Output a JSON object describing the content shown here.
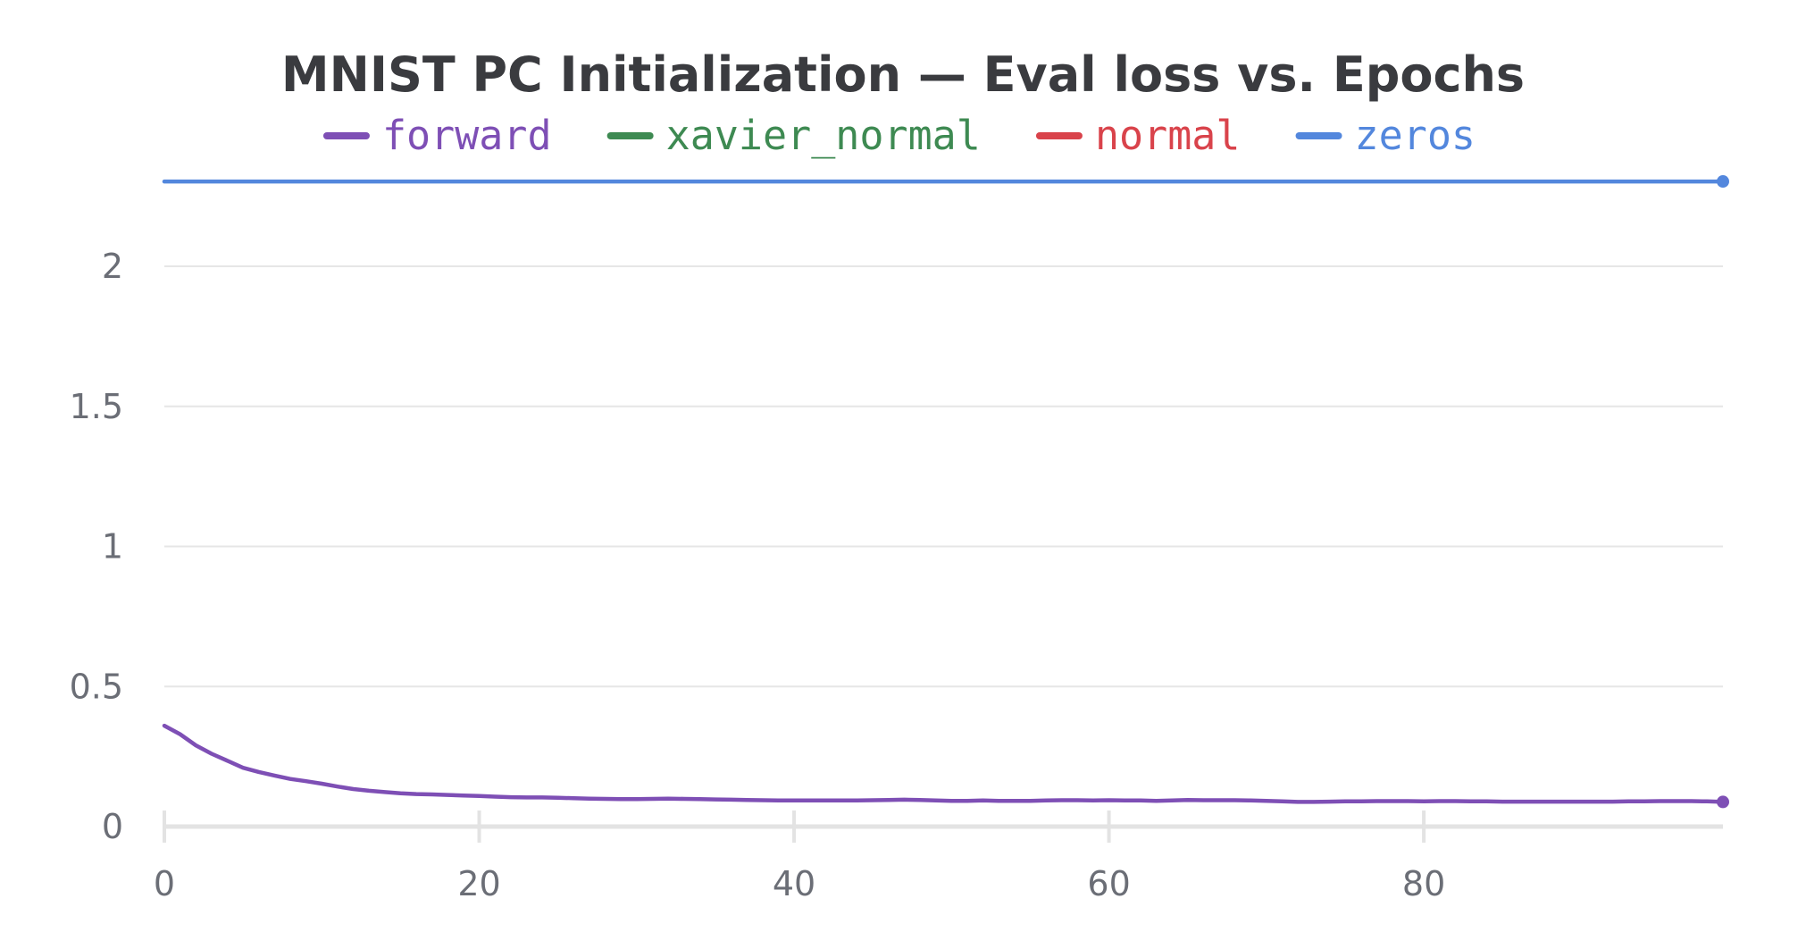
{
  "chart_data": {
    "type": "line",
    "title": "MNIST PC Initialization — Eval loss vs. Epochs",
    "xlabel": "",
    "ylabel": "",
    "xlim": [
      0,
      99
    ],
    "ylim": [
      0,
      2.3
    ],
    "x_ticks": [
      {
        "value": 0,
        "label": "0"
      },
      {
        "value": 20,
        "label": "20"
      },
      {
        "value": 40,
        "label": "40"
      },
      {
        "value": 60,
        "label": "60"
      },
      {
        "value": 80,
        "label": "80"
      }
    ],
    "y_ticks": [
      {
        "value": 0,
        "label": "0"
      },
      {
        "value": 0.5,
        "label": "0.5"
      },
      {
        "value": 1,
        "label": "1"
      },
      {
        "value": 1.5,
        "label": "1.5"
      },
      {
        "value": 2,
        "label": "2"
      }
    ],
    "grid": true,
    "legend_position": "top",
    "series": [
      {
        "name": "forward",
        "color": "#7e4fb5",
        "x": [
          0,
          1,
          2,
          3,
          4,
          5,
          6,
          7,
          8,
          9,
          10,
          11,
          12,
          13,
          14,
          15,
          16,
          17,
          18,
          19,
          20,
          21,
          22,
          23,
          24,
          25,
          26,
          27,
          28,
          29,
          30,
          31,
          32,
          33,
          34,
          35,
          36,
          37,
          38,
          39,
          40,
          41,
          42,
          43,
          44,
          45,
          46,
          47,
          48,
          49,
          50,
          51,
          52,
          53,
          54,
          55,
          56,
          57,
          58,
          59,
          60,
          61,
          62,
          63,
          64,
          65,
          66,
          67,
          68,
          69,
          70,
          71,
          72,
          73,
          74,
          75,
          76,
          77,
          78,
          79,
          80,
          81,
          82,
          83,
          84,
          85,
          86,
          87,
          88,
          89,
          90,
          91,
          92,
          93,
          94,
          95,
          96,
          97,
          98,
          99
        ],
        "y": [
          0.36,
          0.33,
          0.29,
          0.26,
          0.235,
          0.21,
          0.195,
          0.182,
          0.17,
          0.162,
          0.153,
          0.143,
          0.134,
          0.128,
          0.123,
          0.119,
          0.116,
          0.115,
          0.113,
          0.111,
          0.109,
          0.107,
          0.105,
          0.104,
          0.104,
          0.103,
          0.101,
          0.1,
          0.099,
          0.098,
          0.098,
          0.099,
          0.1,
          0.099,
          0.098,
          0.097,
          0.096,
          0.095,
          0.094,
          0.093,
          0.093,
          0.093,
          0.093,
          0.093,
          0.093,
          0.094,
          0.095,
          0.096,
          0.095,
          0.093,
          0.092,
          0.092,
          0.093,
          0.092,
          0.092,
          0.092,
          0.093,
          0.094,
          0.094,
          0.093,
          0.094,
          0.093,
          0.093,
          0.092,
          0.093,
          0.095,
          0.094,
          0.094,
          0.094,
          0.093,
          0.092,
          0.09,
          0.088,
          0.088,
          0.089,
          0.09,
          0.09,
          0.091,
          0.091,
          0.091,
          0.09,
          0.091,
          0.091,
          0.09,
          0.09,
          0.089,
          0.089,
          0.089,
          0.089,
          0.089,
          0.089,
          0.089,
          0.089,
          0.09,
          0.09,
          0.091,
          0.091,
          0.091,
          0.09,
          0.088
        ],
        "end_marker": true
      },
      {
        "name": "xavier_normal",
        "color": "#3e8a52",
        "x": [],
        "y": []
      },
      {
        "name": "normal",
        "color": "#d9434b",
        "x": [],
        "y": []
      },
      {
        "name": "zeros",
        "color": "#5387dd",
        "x": [
          0,
          99
        ],
        "y": [
          2.303,
          2.303
        ],
        "end_marker": true
      }
    ]
  }
}
